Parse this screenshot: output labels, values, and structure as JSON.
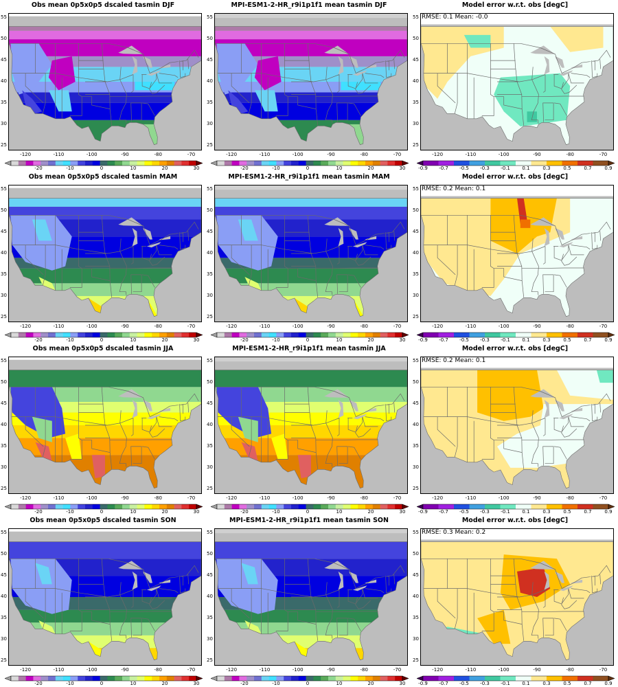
{
  "rows": [
    {
      "season": "DJF",
      "obs_title": "Obs mean 0p5x0p5 dscaled tasmin DJF",
      "model_title": "MPI-ESM1-2-HR_r9i1p1f1 mean tasmin DJF",
      "error_title": "Model error w.r.t. obs [degC]",
      "error_stats": "RMSE: 0.1  Mean: -0.0"
    },
    {
      "season": "MAM",
      "obs_title": "Obs mean 0p5x0p5 dscaled tasmin MAM",
      "model_title": "MPI-ESM1-2-HR_r9i1p1f1 mean tasmin MAM",
      "error_title": "Model error w.r.t. obs [degC]",
      "error_stats": "RMSE: 0.2  Mean: 0.1"
    },
    {
      "season": "JJA",
      "obs_title": "Obs mean 0p5x0p5 dscaled tasmin JJA",
      "model_title": "MPI-ESM1-2-HR_r9i1p1f1 mean tasmin JJA",
      "error_title": "Model error w.r.t. obs [degC]",
      "error_stats": "RMSE: 0.2  Mean: 0.1"
    },
    {
      "season": "SON",
      "obs_title": "Obs mean 0p5x0p5 dscaled tasmin SON",
      "model_title": "MPI-ESM1-2-HR_r9i1p1f1 mean tasmin SON",
      "error_title": "Model error w.r.t. obs [degC]",
      "error_stats": "RMSE: 0.3  Mean: 0.2"
    }
  ],
  "lat_ticks": [
    "55",
    "50",
    "45",
    "40",
    "35",
    "30",
    "25"
  ],
  "lon_ticks": [
    "-120",
    "-110",
    "-100",
    "-90",
    "-80",
    "-70"
  ],
  "temp_colorbar": {
    "labels": [
      "-20",
      "-10",
      "0",
      "10",
      "20",
      "30"
    ],
    "colors": [
      "#a0a0a0",
      "#d9d9d9",
      "#ad7aa8",
      "#c000c0",
      "#e06be0",
      "#9f8fc9",
      "#7070d0",
      "#6ad4f5",
      "#40e0ff",
      "#8a9ef5",
      "#4444dd",
      "#2222cc",
      "#0000e0",
      "#3a6a6a",
      "#2d8a50",
      "#5aaa5a",
      "#90d890",
      "#c8f0a0",
      "#e0ff70",
      "#ffff00",
      "#ffd700",
      "#ffa000",
      "#e08000",
      "#e06060",
      "#e03030",
      "#c00000",
      "#600000"
    ]
  },
  "error_colorbar": {
    "labels": [
      "-0.9",
      "-0.7",
      "-0.5",
      "-0.3",
      "-0.1",
      "0.1",
      "0.3",
      "0.5",
      "0.7",
      "0.9"
    ],
    "colors": [
      "#3c0050",
      "#8000b0",
      "#a020e0",
      "#2050e0",
      "#40a0e0",
      "#40c8a0",
      "#70e8c0",
      "#f0fff8",
      "#ffe890",
      "#ffc000",
      "#f07000",
      "#d03020",
      "#905020",
      "#603010"
    ]
  },
  "colors": {
    "ocean": "#bdbdbd",
    "border": "#6a6a6a"
  }
}
